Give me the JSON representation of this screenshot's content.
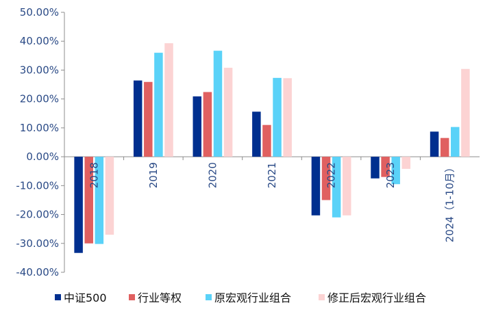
{
  "chart_data": {
    "type": "bar",
    "categories": [
      "2018",
      "2019",
      "2020",
      "2021",
      "2022",
      "2023",
      "2024（1-10月）"
    ],
    "series": [
      {
        "name": "中证500",
        "color": "#002f8f",
        "values": [
          -33.3,
          26.4,
          20.9,
          15.6,
          -20.3,
          -7.5,
          8.7
        ]
      },
      {
        "name": "行业等权",
        "color": "#e06060",
        "values": [
          -30.0,
          25.9,
          22.4,
          11.0,
          -15.0,
          -7.0,
          6.5
        ]
      },
      {
        "name": "原宏观行业组合",
        "color": "#5ad2f8",
        "values": [
          -30.2,
          36.0,
          36.7,
          27.3,
          -21.0,
          -9.5,
          10.3
        ]
      },
      {
        "name": "修正后宏观行业组合",
        "color": "#fcd3d3",
        "values": [
          -27.0,
          39.3,
          30.8,
          27.2,
          -20.3,
          -4.2,
          30.4
        ]
      }
    ],
    "ylim": [
      -40,
      50
    ],
    "yticks": [
      "50.00%",
      "40.00%",
      "30.00%",
      "20.00%",
      "10.00%",
      "0.00%",
      "-10.00%",
      "-20.00%",
      "-30.00%",
      "-40.00%"
    ],
    "ytick_values": [
      50,
      40,
      30,
      20,
      10,
      0,
      -10,
      -20,
      -30,
      -40
    ],
    "grid": false,
    "legend_position": "bottom"
  }
}
